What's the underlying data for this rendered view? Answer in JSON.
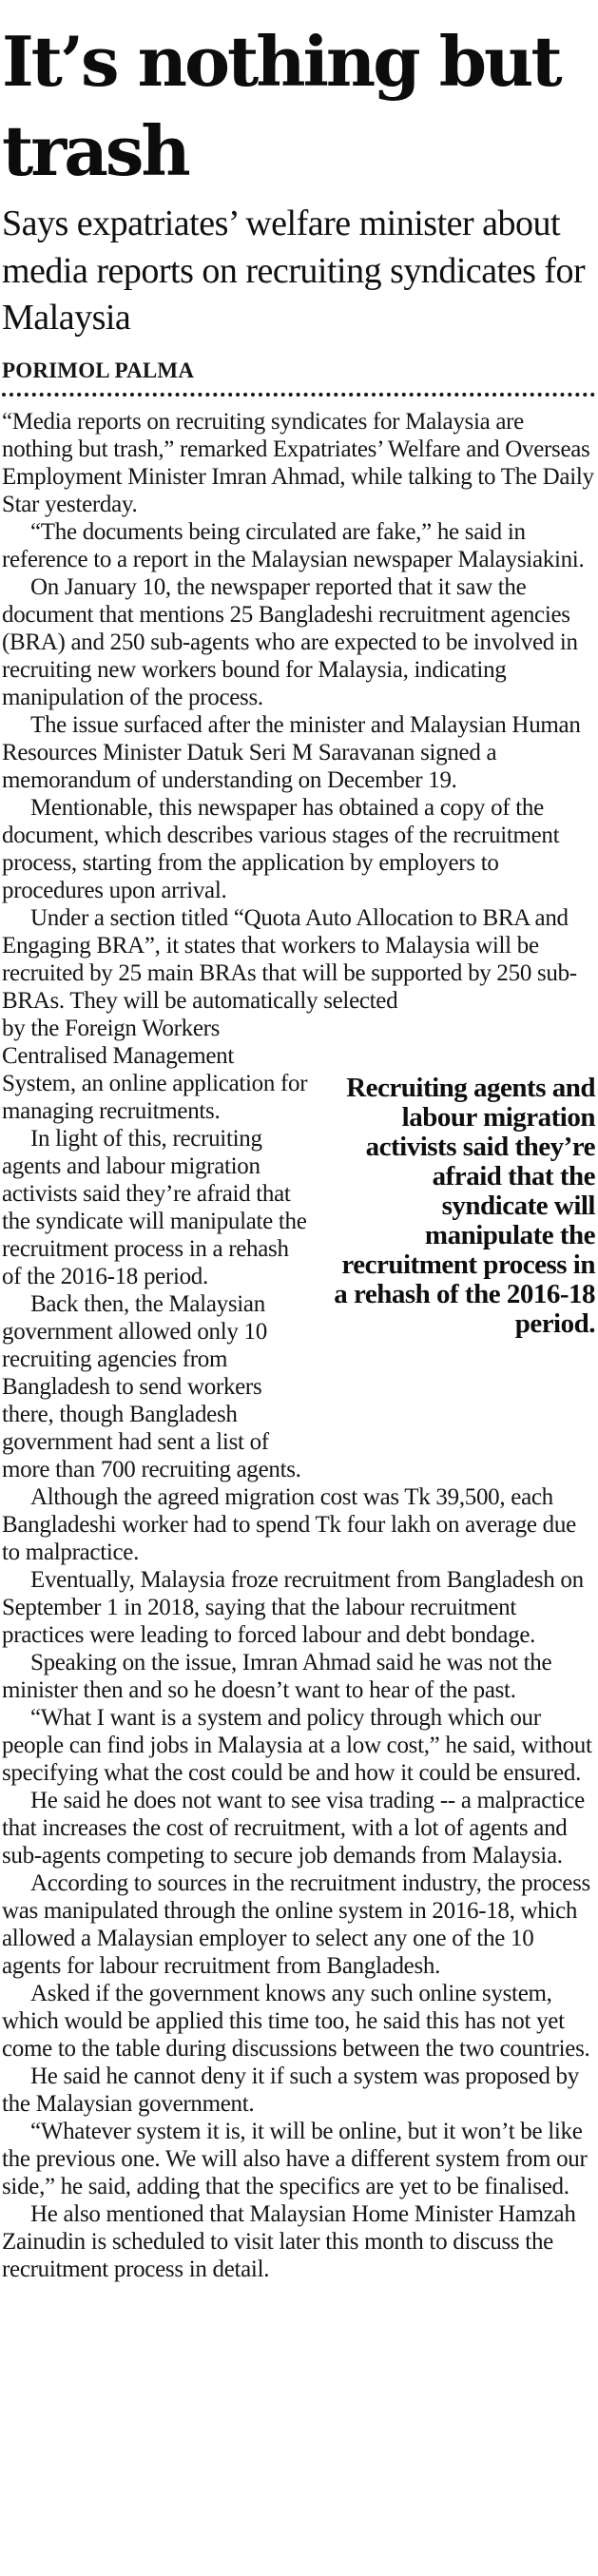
{
  "article": {
    "headline": "It’s nothing but trash",
    "subheadline": "Says expatriates’ welfare minister about media reports on recruiting syndicates for Malaysia",
    "byline": "PORIMOL PALMA",
    "pull_quote": "Recruiting agents and labour migration activists said they’re afraid that the syndicate will manipulate the recruitment process in a rehash of the 2016-18 period.",
    "body": {
      "intro": [
        "“Media reports on recruiting syndicates for Malaysia are nothing but trash,” remarked Expatriates’ Welfare and Overseas Employment Minister Imran Ahmad, while talking to The Daily Star yesterday.",
        "“The documents being circulated are fake,” he said in reference to a report in the Malaysian newspaper Malaysiakini.",
        "On January 10, the newspaper reported that it saw the document that mentions 25 Bangladeshi recruitment agencies (BRA) and 250 sub-agents who are expected to be involved in recruiting new workers bound for Malaysia, indicating manipulation of the process.",
        "The issue surfaced after the minister and Malaysian Human Resources Minister Datuk Seri M Saravanan signed a memorandum of understanding on December 19.",
        "Mentionable, this newspaper has obtained a copy of the document, which describes various stages of the recruitment process, starting from the application by employers to procedures upon arrival."
      ],
      "p6_part1": "Under a section titled “Quota Auto Allocation to BRA and Engaging BRA”, it states that workers to Malaysia will be recruited by 25 main BRAs that will be supported by 250 sub-BRAs. They will be automatically selected",
      "p6_part2": "by the Foreign Workers Centralised Management System, an online application for managing recruitments.",
      "rest": [
        "In light of this, recruiting agents and labour migration activists said they’re afraid that the syndicate will manipulate the recruitment process in a rehash of the 2016-18 period.",
        "Back then, the Malaysian government allowed only 10 recruiting agencies from Bangladesh to send workers there, though Bangladesh government had sent a list of more than 700 recruiting agents.",
        "Although the agreed migration cost was Tk 39,500, each Bangladeshi worker had to spend Tk four lakh on average due to malpractice.",
        "Eventually, Malaysia froze recruitment from Bangladesh on September 1 in 2018, saying that the labour recruitment practices were leading to forced labour and debt bondage.",
        "Speaking on the issue, Imran Ahmad said he was not the minister then and so he doesn’t want to hear of the past.",
        "“What I want is a system and policy through which our people can find jobs in Malaysia at a low cost,” he said, without specifying what the cost could be and how it could be ensured.",
        "He said he does not want to see visa trading -- a malpractice that increases the cost of recruitment, with a lot of agents and sub-agents competing to secure job demands from Malaysia.",
        "According to sources in the recruitment industry, the process was manipulated through the online system in 2016-18, which allowed a Malaysian employer to select any one of the 10 agents for labour recruitment from Bangladesh.",
        "Asked if the government knows any such online system, which would be applied this time too, he said this has not yet come to the table during discussions between the two countries.",
        "He said he cannot deny it if such a system was proposed by the Malaysian government.",
        "“Whatever system it is, it will be online, but it won’t be like the previous one. We will also have a different system from our side,” he said, adding that the specifics are yet to be finalised.",
        "He also mentioned that Malaysian Home Minister Hamzah Zainudin is scheduled to visit later this month to discuss the recruitment process in detail."
      ]
    }
  }
}
